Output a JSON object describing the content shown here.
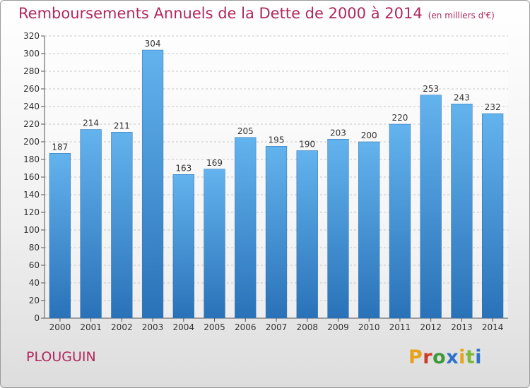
{
  "chart_data": {
    "type": "bar",
    "title": "Remboursements Annuels de la Dette de 2000 à 2014",
    "subtitle": "(en milliers d'€)",
    "categories": [
      "2000",
      "2001",
      "2002",
      "2003",
      "2004",
      "2005",
      "2006",
      "2007",
      "2008",
      "2009",
      "2010",
      "2011",
      "2012",
      "2013",
      "2014"
    ],
    "values": [
      187,
      214,
      211,
      304,
      163,
      169,
      205,
      195,
      190,
      203,
      200,
      220,
      253,
      243,
      232
    ],
    "ylim": [
      0,
      320
    ],
    "yticks": [
      0,
      20,
      40,
      60,
      80,
      100,
      120,
      140,
      160,
      180,
      200,
      220,
      240,
      260,
      280,
      300,
      320
    ],
    "grid": true,
    "bar_color": "#3a8fd6",
    "bar_color_light": "#63b3ee",
    "bar_color_dark": "#2a72b8"
  },
  "footer": {
    "commune": "PLOUGUIN",
    "logo": "Proxiti",
    "logo_colors": [
      "#e8a21c",
      "#d03c2a",
      "#3d9a3a",
      "#2e72c9",
      "#e8a21c",
      "#7cb83a",
      "#2e72c9"
    ]
  },
  "colors": {
    "title": "#b0285d"
  }
}
